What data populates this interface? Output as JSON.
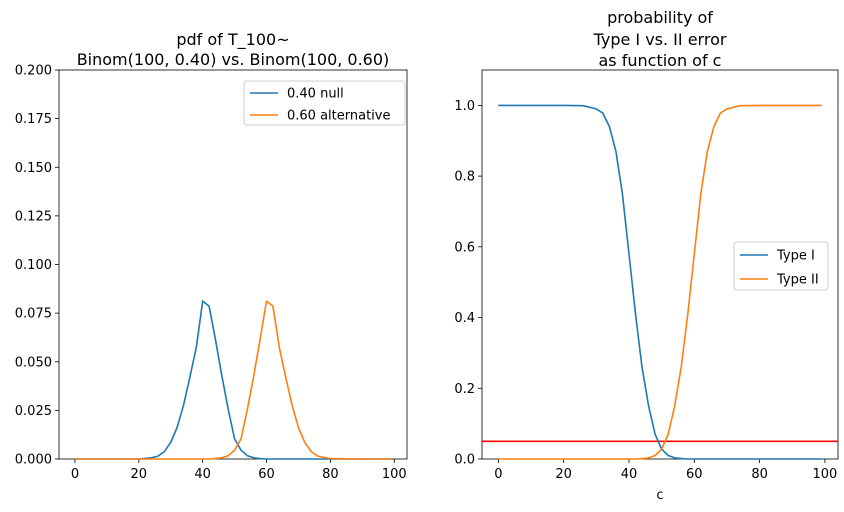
{
  "chart_data": [
    {
      "type": "line",
      "title_lines": [
        "pdf of T_100~",
        "Binom(100, 0.40) vs. Binom(100, 0.60)"
      ],
      "xlabel": "",
      "ylabel": "",
      "xlim": [
        -5,
        104
      ],
      "ylim": [
        0,
        0.2
      ],
      "xticks": [
        0,
        20,
        40,
        60,
        80,
        100
      ],
      "yticks": [
        0.0,
        0.025,
        0.05,
        0.075,
        0.1,
        0.125,
        0.15,
        0.175,
        0.2
      ],
      "ytick_labels": [
        "0.000",
        "0.025",
        "0.050",
        "0.075",
        "0.100",
        "0.125",
        "0.150",
        "0.175",
        "0.200"
      ],
      "legend_position": "top-right",
      "x": [
        0,
        10,
        20,
        24,
        26,
        28,
        30,
        32,
        34,
        36,
        38,
        40,
        42,
        44,
        46,
        48,
        50,
        52,
        54,
        56,
        58,
        60,
        62,
        64,
        66,
        68,
        70,
        72,
        74,
        76,
        80,
        90,
        99
      ],
      "series": [
        {
          "name": "0.40 null",
          "color": "#1f77b4",
          "values": [
            0,
            0,
            0,
            0.0006,
            0.0015,
            0.0038,
            0.0085,
            0.0162,
            0.0276,
            0.0421,
            0.0574,
            0.0812,
            0.0786,
            0.0616,
            0.0429,
            0.0256,
            0.0103,
            0.0045,
            0.0017,
            0.0006,
            0.0002,
            0,
            0,
            0,
            0,
            0,
            0,
            0,
            0,
            0,
            0,
            0,
            0
          ]
        },
        {
          "name": "0.60 alternative",
          "color": "#ff7f0e",
          "values": [
            0,
            0,
            0,
            0,
            0,
            0,
            0,
            0,
            0,
            0,
            0,
            0,
            0,
            0.0002,
            0.0006,
            0.0017,
            0.0045,
            0.0103,
            0.0256,
            0.0429,
            0.0616,
            0.0812,
            0.0786,
            0.0574,
            0.0421,
            0.0276,
            0.0162,
            0.0085,
            0.0038,
            0.0015,
            0.0002,
            0,
            0
          ]
        }
      ]
    },
    {
      "type": "line",
      "title_lines": [
        "probability of",
        "Type I vs. II error",
        "as function of c"
      ],
      "xlabel": "c",
      "ylabel": "",
      "xlim": [
        -5,
        104
      ],
      "ylim": [
        0,
        1.1
      ],
      "xticks": [
        0,
        20,
        40,
        60,
        80,
        100
      ],
      "yticks": [
        0.0,
        0.2,
        0.4,
        0.6,
        0.8,
        1.0
      ],
      "ytick_labels": [
        "0.0",
        "0.2",
        "0.4",
        "0.6",
        "0.8",
        "1.0"
      ],
      "legend_position": "center-right",
      "hline": {
        "y": 0.05,
        "color": "#ff0000"
      },
      "x": [
        0,
        10,
        20,
        26,
        30,
        32,
        34,
        36,
        38,
        40,
        42,
        44,
        46,
        48,
        50,
        52,
        54,
        56,
        58,
        60,
        62,
        64,
        66,
        68,
        70,
        74,
        80,
        90,
        99
      ],
      "series": [
        {
          "name": "Type I",
          "color": "#1f77b4",
          "values": [
            1,
            1,
            1,
            0.999,
            0.99,
            0.978,
            0.94,
            0.87,
            0.75,
            0.58,
            0.41,
            0.26,
            0.15,
            0.07,
            0.028,
            0.01,
            0.003,
            0.001,
            0,
            0,
            0,
            0,
            0,
            0,
            0,
            0,
            0,
            0,
            0
          ]
        },
        {
          "name": "Type II",
          "color": "#ff7f0e",
          "values": [
            0,
            0,
            0,
            0,
            0,
            0,
            0,
            0,
            0,
            0,
            0,
            0.001,
            0.003,
            0.01,
            0.028,
            0.07,
            0.15,
            0.26,
            0.41,
            0.58,
            0.75,
            0.87,
            0.94,
            0.978,
            0.99,
            0.999,
            1,
            1,
            1
          ]
        }
      ]
    }
  ]
}
